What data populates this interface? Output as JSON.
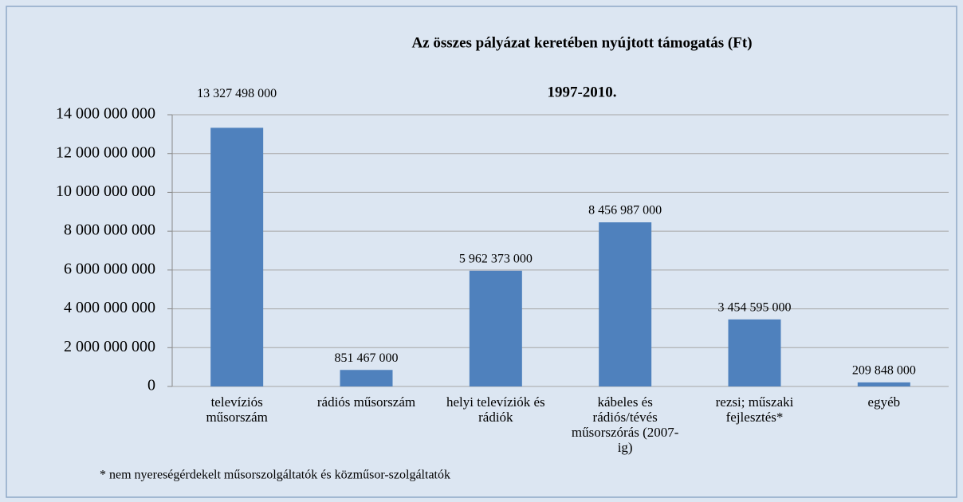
{
  "chart_data": {
    "type": "bar",
    "title": "Az összes pályázat keretében nyújtott támogatás (Ft)",
    "subtitle": "1997-2010.",
    "categories": [
      "televíziós műsorszám",
      "rádiós műsorszám",
      "helyi televíziók és rádiók",
      "kábeles és rádiós/tévés műsorszórás (2007-ig)",
      "rezsi; műszaki fejlesztés*",
      "egyéb"
    ],
    "values": [
      13327498000,
      851467000,
      5962373000,
      8456987000,
      3454595000,
      209848000
    ],
    "value_labels": [
      "13 327 498 000",
      "851 467 000",
      "5 962 373 000",
      "8 456 987 000",
      "3 454 595 000",
      "209 848 000"
    ],
    "color": "#4f81bd",
    "ylim": [
      0,
      14000000000
    ],
    "yticks": [
      0,
      {
        "value": 2000000000,
        "label": "2 000 000 000"
      },
      {
        "value": 4000000000,
        "label": "4 000 000 000"
      },
      {
        "value": 6000000000,
        "label": "6 000 000 000"
      },
      {
        "value": 8000000000,
        "label": "8 000 000 000"
      },
      {
        "value": 10000000000,
        "label": "10 000 000 000"
      },
      {
        "value": 12000000000,
        "label": "12 000 000 000"
      },
      {
        "value": 14000000000,
        "label": "14 000 000 000"
      }
    ],
    "grid": true,
    "annotation": "* nem nyereségérdekelt műsorszolgáltatók  és közműsor-szolgáltatók"
  }
}
